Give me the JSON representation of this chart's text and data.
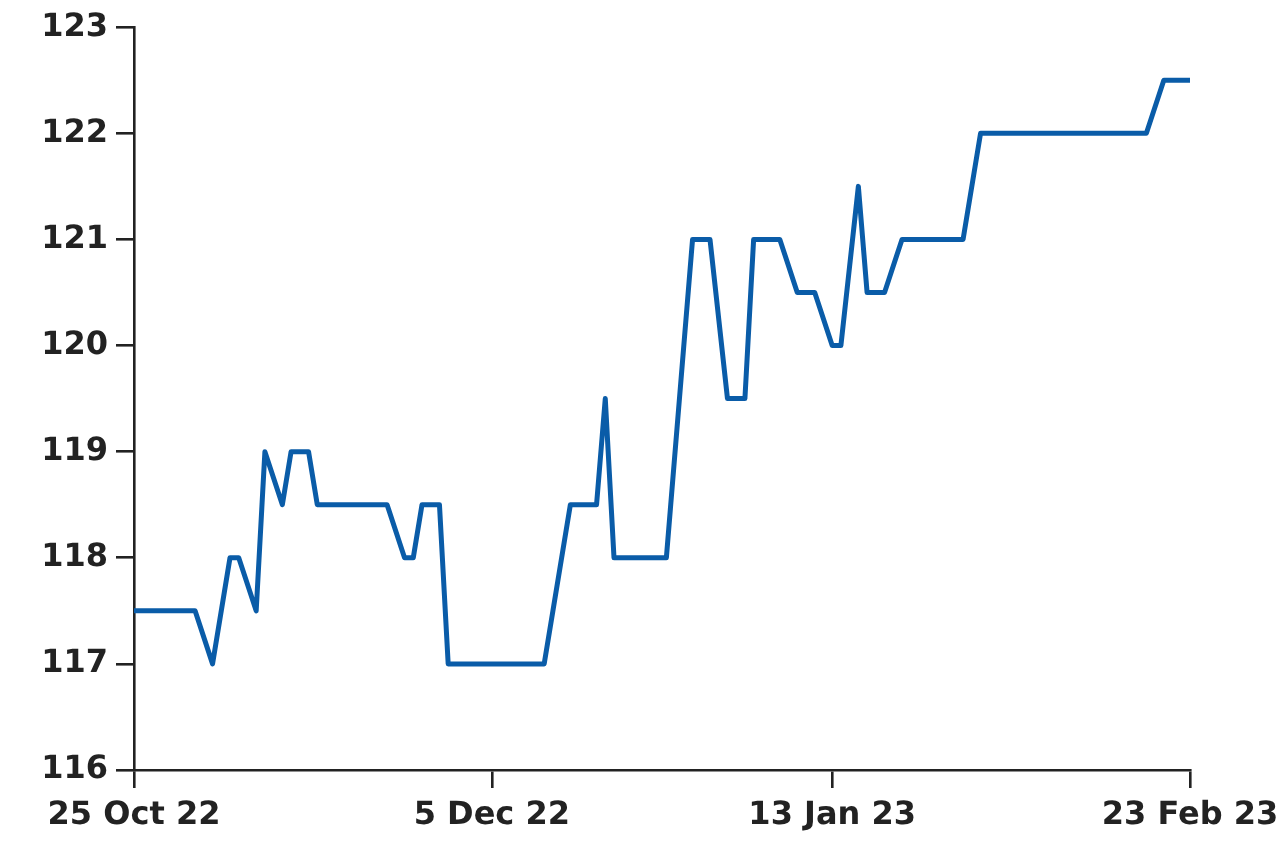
{
  "chart_data": {
    "type": "line",
    "x": [
      "2022-10-25",
      "2022-11-01",
      "2022-11-03",
      "2022-11-05",
      "2022-11-06",
      "2022-11-08",
      "2022-11-09",
      "2022-11-11",
      "2022-11-12",
      "2022-11-14",
      "2022-11-15",
      "2022-11-23",
      "2022-11-25",
      "2022-11-26",
      "2022-11-27",
      "2022-11-29",
      "2022-11-30",
      "2022-12-11",
      "2022-12-12",
      "2022-12-14",
      "2022-12-17",
      "2022-12-18",
      "2022-12-19",
      "2022-12-25",
      "2022-12-28",
      "2022-12-30",
      "2023-01-01",
      "2023-01-03",
      "2023-01-04",
      "2023-01-07",
      "2023-01-09",
      "2023-01-11",
      "2023-01-13",
      "2023-01-14",
      "2023-01-16",
      "2023-01-17",
      "2023-01-19",
      "2023-01-21",
      "2023-01-28",
      "2023-01-30",
      "2023-02-18",
      "2023-02-20",
      "2023-02-23"
    ],
    "series": [
      {
        "color": "#0a5ca8",
        "values": [
          117.5,
          117.5,
          117,
          118,
          118,
          117.5,
          119,
          118.5,
          119,
          119,
          118.5,
          118.5,
          118,
          118,
          118.5,
          118.5,
          117,
          117,
          117.5,
          118.5,
          118.5,
          119.5,
          118,
          118,
          121,
          121,
          119.5,
          119.5,
          121,
          121,
          120.5,
          120.5,
          120,
          120,
          121.5,
          120.5,
          120.5,
          121,
          121,
          122,
          122,
          122.5,
          122.5
        ]
      }
    ],
    "xlim": [
      "2022-10-25",
      "2023-02-23"
    ],
    "xticks": [
      {
        "value": "2022-10-25",
        "label": "25 Oct 22"
      },
      {
        "value": "2022-12-05",
        "label": "5 Dec 22"
      },
      {
        "value": "2023-01-13",
        "label": "13 Jan 23"
      },
      {
        "value": "2023-02-23",
        "label": "23 Feb 23"
      }
    ],
    "ylim": [
      116,
      123
    ],
    "yticks": [
      116,
      117,
      118,
      119,
      120,
      121,
      122,
      123
    ],
    "grid": false,
    "legend": false,
    "marker": "none",
    "line_style": "solid"
  }
}
